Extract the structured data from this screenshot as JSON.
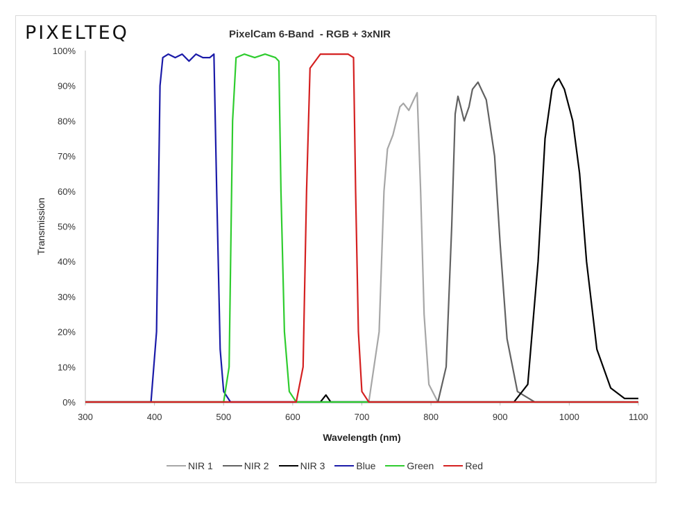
{
  "logo": "PIXELTEQ",
  "chart_data": {
    "type": "line",
    "title": "PixelCam 6-Band  - RGB + 3xNIR",
    "xlabel": "Wavelength (nm)",
    "ylabel": "Transmission",
    "xlim": [
      300,
      1100
    ],
    "ylim": [
      0,
      100
    ],
    "xticks": [
      "300",
      "400",
      "500",
      "600",
      "700",
      "800",
      "900",
      "1000",
      "1100"
    ],
    "yticks": [
      "0%",
      "10%",
      "20%",
      "30%",
      "40%",
      "50%",
      "60%",
      "70%",
      "80%",
      "90%",
      "100%"
    ],
    "grid": false,
    "legend_position": "bottom",
    "series": [
      {
        "name": "NIR 1",
        "color": "#a6a6a6",
        "x": [
          300,
          710,
          725,
          732,
          737,
          745,
          755,
          760,
          768,
          775,
          780,
          785,
          790,
          797,
          810,
          1100
        ],
        "y": [
          0,
          0,
          20,
          60,
          72,
          76,
          84,
          85,
          83,
          86,
          88,
          60,
          25,
          5,
          0,
          0
        ]
      },
      {
        "name": "NIR 2",
        "color": "#616161",
        "x": [
          300,
          810,
          822,
          830,
          835,
          839,
          843,
          848,
          855,
          860,
          868,
          880,
          892,
          900,
          910,
          925,
          950,
          1100
        ],
        "y": [
          0,
          0,
          10,
          50,
          82,
          87,
          84,
          80,
          84,
          89,
          91,
          86,
          70,
          45,
          18,
          3,
          0,
          0
        ]
      },
      {
        "name": "NIR 3",
        "color": "#000000",
        "x": [
          300,
          640,
          648,
          655,
          920,
          940,
          955,
          965,
          975,
          980,
          985,
          993,
          1005,
          1015,
          1025,
          1040,
          1060,
          1080,
          1100
        ],
        "y": [
          0,
          0,
          2,
          0,
          0,
          5,
          40,
          75,
          89,
          91,
          92,
          89,
          80,
          65,
          40,
          15,
          4,
          1,
          1
        ]
      },
      {
        "name": "Blue",
        "color": "#1a1aa8",
        "x": [
          300,
          395,
          403,
          408,
          412,
          420,
          430,
          440,
          450,
          460,
          470,
          480,
          486,
          490,
          495,
          500,
          510,
          1100
        ],
        "y": [
          0,
          0,
          20,
          90,
          98,
          99,
          98,
          99,
          97,
          99,
          98,
          98,
          99,
          60,
          15,
          3,
          0,
          0
        ]
      },
      {
        "name": "Green",
        "color": "#2ecc2e",
        "x": [
          300,
          500,
          508,
          513,
          518,
          530,
          545,
          560,
          575,
          580,
          583,
          588,
          595,
          605,
          1100
        ],
        "y": [
          0,
          0,
          10,
          80,
          98,
          99,
          98,
          99,
          98,
          97,
          60,
          20,
          3,
          0,
          0
        ]
      },
      {
        "name": "Red",
        "color": "#d42020",
        "x": [
          300,
          605,
          615,
          620,
          625,
          640,
          660,
          680,
          688,
          691,
          695,
          700,
          710,
          1100
        ],
        "y": [
          0,
          0,
          10,
          60,
          95,
          99,
          99,
          99,
          98,
          60,
          20,
          3,
          0,
          0
        ]
      }
    ]
  }
}
